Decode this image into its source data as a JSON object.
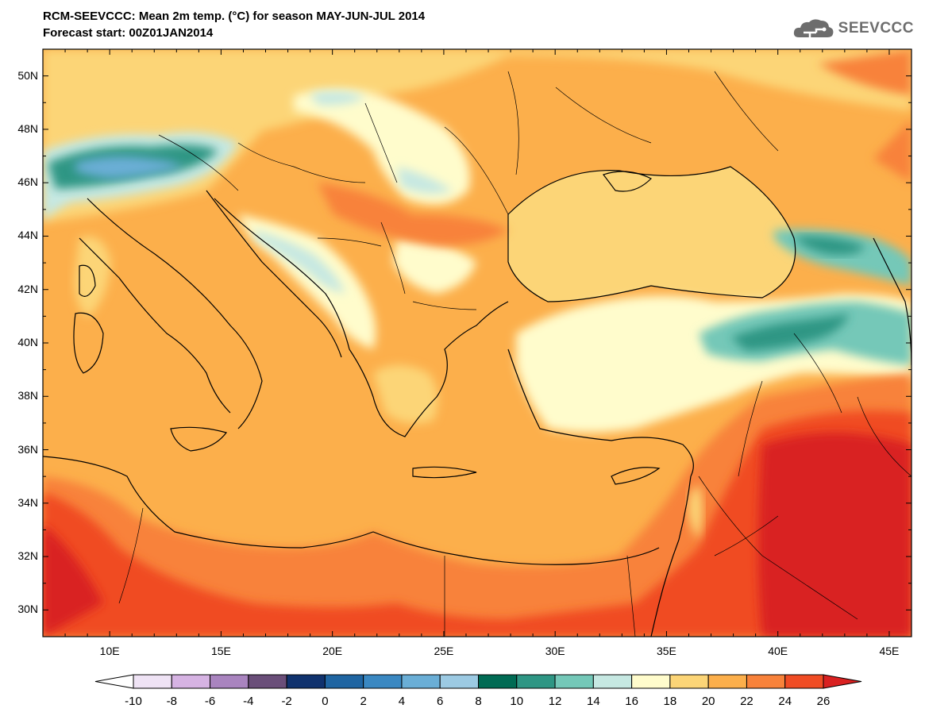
{
  "title": {
    "line1": "RCM-SEEVCCC: Mean 2m temp. (°C) for season MAY-JUN-JUL 2014",
    "line2": "Forecast start: 00Z01JAN2014"
  },
  "logo": {
    "icon": "cloud-icon",
    "text": "SEEVCCC"
  },
  "map": {
    "lon_range": [
      7,
      46
    ],
    "lat_range": [
      29,
      51
    ],
    "lat_labels": [
      "50N",
      "48N",
      "46N",
      "44N",
      "42N",
      "40N",
      "38N",
      "36N",
      "34N",
      "32N",
      "30N"
    ],
    "lon_labels": [
      "10E",
      "15E",
      "20E",
      "25E",
      "30E",
      "35E",
      "40E",
      "45E"
    ]
  },
  "colorbar": {
    "labels": [
      "-10",
      "-8",
      "-6",
      "-4",
      "-2",
      "0",
      "2",
      "4",
      "6",
      "8",
      "10",
      "12",
      "14",
      "16",
      "18",
      "20",
      "22",
      "24",
      "26"
    ],
    "colors": [
      "#ffffff",
      "#efe3f5",
      "#d6b3e3",
      "#a984bf",
      "#6a4e79",
      "#10326e",
      "#1f65a2",
      "#3a88c2",
      "#6aaed6",
      "#9ccae3",
      "#006b54",
      "#2e9684",
      "#74c8b8",
      "#c6e8e2",
      "#fffccc",
      "#fcd577",
      "#fcaf4b",
      "#f8823a",
      "#f04c24",
      "#d92121"
    ]
  }
}
